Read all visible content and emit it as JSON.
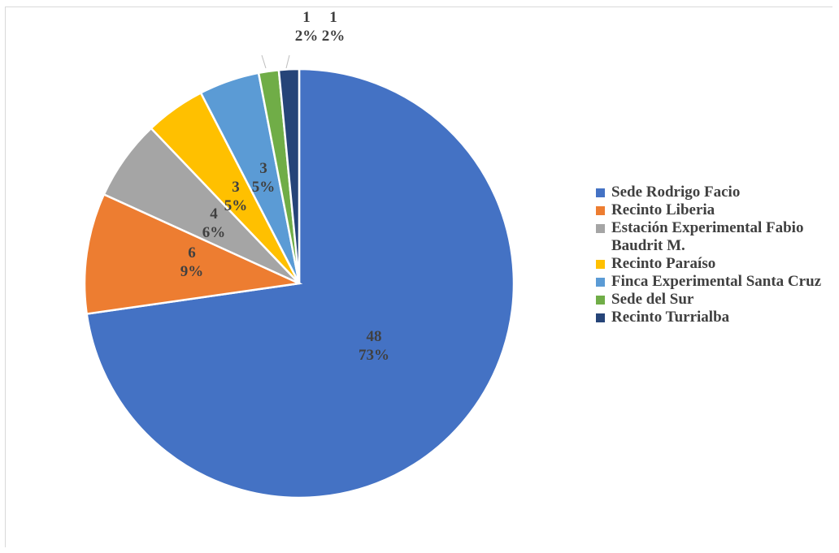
{
  "chart_data": {
    "type": "pie",
    "title": "",
    "legend_position": "right",
    "slices": [
      {
        "name": "Sede Rodrigo Facio",
        "value": 48,
        "percent_label": "73%",
        "color": "#4472C4"
      },
      {
        "name": "Recinto Liberia",
        "value": 6,
        "percent_label": "9%",
        "color": "#ED7D31"
      },
      {
        "name": "Estación Experimental Fabio Baudrit M.",
        "value": 4,
        "percent_label": "6%",
        "color": "#A5A5A5"
      },
      {
        "name": "Recinto Paraíso",
        "value": 3,
        "percent_label": "5%",
        "color": "#FFC000"
      },
      {
        "name": "Finca Experimental Santa Cruz",
        "value": 3,
        "percent_label": "5%",
        "color": "#5B9BD5"
      },
      {
        "name": "Sede del Sur",
        "value": 1,
        "percent_label": "2%",
        "color": "#70AD47"
      },
      {
        "name": "Recinto Turrialba",
        "value": 1,
        "percent_label": "2%",
        "color": "#264478"
      }
    ]
  }
}
